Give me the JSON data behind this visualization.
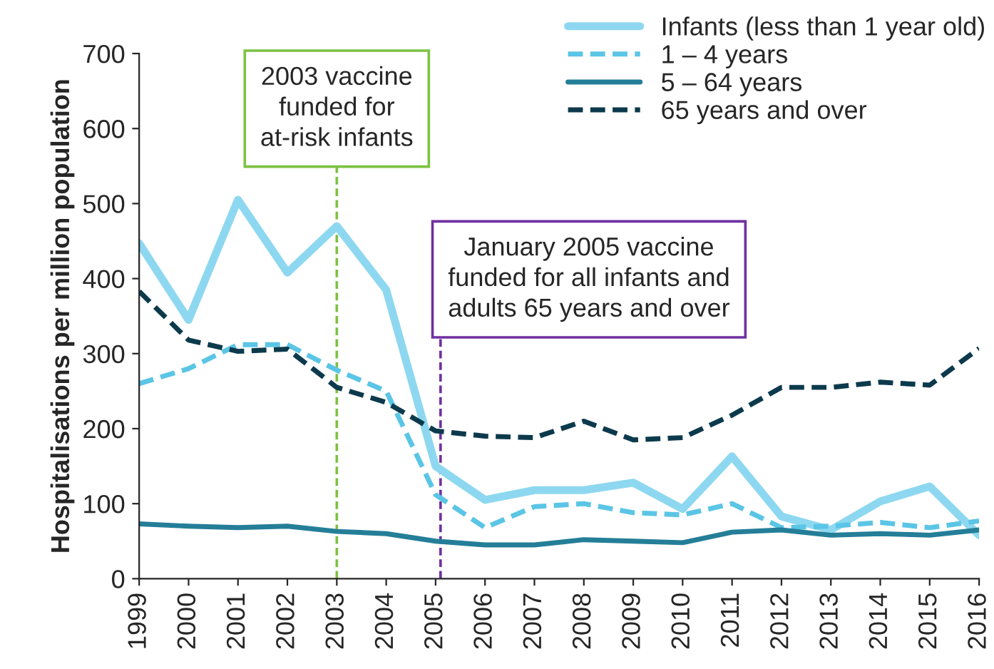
{
  "chart_data": {
    "type": "line",
    "ylabel": "Hospitalisations per million population",
    "x": [
      1999,
      2000,
      2001,
      2002,
      2003,
      2004,
      2005,
      2006,
      2007,
      2008,
      2009,
      2010,
      2011,
      2012,
      2013,
      2014,
      2015,
      2016
    ],
    "series": [
      {
        "name": "Infants (less than 1 year old)",
        "color": "#8dd8f0",
        "line_style": "solid",
        "values": [
          447,
          345,
          505,
          408,
          470,
          385,
          150,
          105,
          118,
          118,
          128,
          93,
          163,
          83,
          65,
          103,
          123,
          58
        ]
      },
      {
        "name": "1 – 4 years",
        "color": "#5bc5e6",
        "line_style": "dashed",
        "values": [
          260,
          280,
          312,
          312,
          278,
          250,
          112,
          68,
          96,
          100,
          88,
          85,
          100,
          68,
          70,
          75,
          68,
          77
        ]
      },
      {
        "name": "5 – 64 years",
        "color": "#247e98",
        "line_style": "solid",
        "values": [
          73,
          70,
          68,
          70,
          63,
          60,
          50,
          45,
          45,
          52,
          50,
          48,
          62,
          65,
          58,
          60,
          58,
          65
        ]
      },
      {
        "name": "65 years and over",
        "color": "#0c3a4c",
        "line_style": "dashed",
        "values": [
          383,
          318,
          303,
          306,
          255,
          235,
          197,
          190,
          188,
          210,
          185,
          188,
          218,
          255,
          255,
          262,
          258,
          307
        ]
      }
    ],
    "xlim": [
      1999,
      2016
    ],
    "xticks": [
      1999,
      2000,
      2001,
      2002,
      2003,
      2004,
      2005,
      2006,
      2007,
      2008,
      2009,
      2010,
      2011,
      2012,
      2013,
      2014,
      2015,
      2016
    ],
    "ylim": [
      0,
      700
    ],
    "yticks": [
      0,
      100,
      200,
      300,
      400,
      500,
      600,
      700
    ],
    "ref_lines": [
      {
        "axis": "x",
        "value": 2003,
        "label": "2003 vaccine\nfunded for\nat-risk infants",
        "color": "#7cc242",
        "line_style": "dashed"
      },
      {
        "axis": "x",
        "value": 2005.1,
        "label": "January 2005 vaccine\nfunded for all infants and\nadults 65 years and over",
        "color": "#7030a0",
        "line_style": "dashed"
      }
    ],
    "grid": false,
    "legend": "top right",
    "marker": "none"
  }
}
